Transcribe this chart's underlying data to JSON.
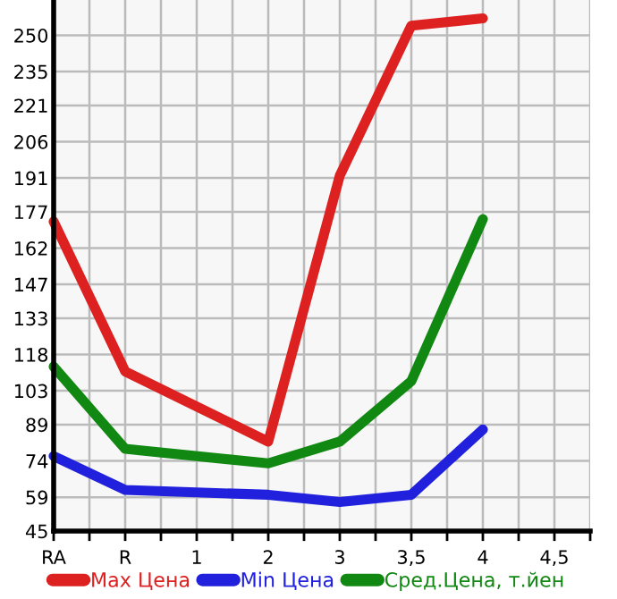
{
  "chart_data": {
    "type": "line",
    "categories": [
      "RA",
      "R",
      "1",
      "2",
      "3",
      "3,5",
      "4",
      "4,5"
    ],
    "series": [
      {
        "name": "Max Цена",
        "color": "#dd2020",
        "values": [
          173,
          111,
          null,
          82,
          192,
          254,
          257,
          null
        ]
      },
      {
        "name": "Min Цена",
        "color": "#2020dd",
        "values": [
          76,
          62,
          null,
          60,
          57,
          60,
          87,
          null
        ]
      },
      {
        "name": "Сред.Цена, т.йен",
        "color": "#118811",
        "values": [
          113,
          79,
          null,
          73,
          82,
          107,
          174,
          null
        ]
      }
    ],
    "ylim": [
      45,
      264.6
    ],
    "yticks": [
      45,
      59,
      74,
      89,
      103,
      118,
      133,
      147,
      162,
      177,
      191,
      206,
      221,
      235,
      250
    ],
    "grid": true,
    "legend": "bottom",
    "marker": "none",
    "line_style": "solid"
  }
}
